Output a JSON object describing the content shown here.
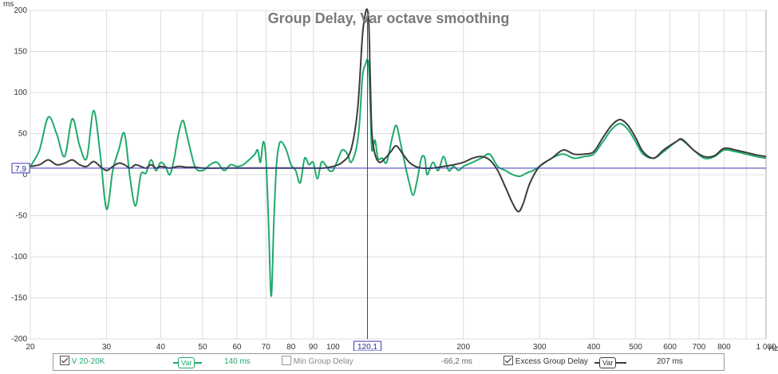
{
  "chart_data": {
    "type": "line",
    "title": "Group Delay, Var octave smoothing",
    "ylabel": "ms",
    "xunit": "Hz",
    "xscale": "log",
    "xlim": [
      20,
      1000
    ],
    "ylim": [
      -200,
      200
    ],
    "grid": true,
    "yticks": [
      "200",
      "150",
      "100",
      "50",
      "0",
      "-50",
      "-100",
      "-150",
      "-200"
    ],
    "xticks": [
      {
        "v": 20,
        "label": "20"
      },
      {
        "v": 30,
        "label": "30"
      },
      {
        "v": 40,
        "label": "40"
      },
      {
        "v": 50,
        "label": "50"
      },
      {
        "v": 60,
        "label": "60"
      },
      {
        "v": 70,
        "label": "70"
      },
      {
        "v": 80,
        "label": "80"
      },
      {
        "v": 90,
        "label": "90"
      },
      {
        "v": 100,
        "label": "100"
      },
      {
        "v": 200,
        "label": "200"
      },
      {
        "v": 300,
        "label": "300"
      },
      {
        "v": 400,
        "label": "400"
      },
      {
        "v": 500,
        "label": "500"
      },
      {
        "v": 600,
        "label": "600"
      },
      {
        "v": 700,
        "label": "700"
      },
      {
        "v": 800,
        "label": "800"
      },
      {
        "v": 1000,
        "label": "1 000"
      }
    ],
    "cursor": {
      "x": 120.1,
      "y": 7.9,
      "x_label": "120,1",
      "y_label": "7,9"
    },
    "series": [
      {
        "name": "V 20-20K",
        "color": "#1faa6a",
        "points": [
          [
            20,
            10
          ],
          [
            21,
            30
          ],
          [
            22,
            70
          ],
          [
            23,
            50
          ],
          [
            24,
            22
          ],
          [
            25,
            68
          ],
          [
            26,
            35
          ],
          [
            27,
            20
          ],
          [
            28,
            78
          ],
          [
            29,
            25
          ],
          [
            30,
            -42
          ],
          [
            31,
            5
          ],
          [
            32,
            30
          ],
          [
            33,
            50
          ],
          [
            34,
            -5
          ],
          [
            35,
            -38
          ],
          [
            36,
            0
          ],
          [
            37,
            2
          ],
          [
            38,
            18
          ],
          [
            39,
            5
          ],
          [
            40,
            15
          ],
          [
            41,
            10
          ],
          [
            42,
            0
          ],
          [
            43,
            20
          ],
          [
            44,
            50
          ],
          [
            45,
            66
          ],
          [
            46,
            48
          ],
          [
            48,
            10
          ],
          [
            50,
            5
          ],
          [
            52,
            12
          ],
          [
            54,
            15
          ],
          [
            56,
            5
          ],
          [
            58,
            12
          ],
          [
            60,
            10
          ],
          [
            62,
            12
          ],
          [
            64,
            18
          ],
          [
            66,
            25
          ],
          [
            67,
            30
          ],
          [
            68,
            15
          ],
          [
            69,
            40
          ],
          [
            70,
            20
          ],
          [
            71,
            -60
          ],
          [
            72,
            -148
          ],
          [
            73,
            -60
          ],
          [
            74,
            10
          ],
          [
            75,
            35
          ],
          [
            76,
            40
          ],
          [
            78,
            30
          ],
          [
            80,
            12
          ],
          [
            82,
            5
          ],
          [
            84,
            -10
          ],
          [
            86,
            20
          ],
          [
            88,
            12
          ],
          [
            90,
            15
          ],
          [
            92,
            -5
          ],
          [
            94,
            15
          ],
          [
            96,
            12
          ],
          [
            98,
            5
          ],
          [
            100,
            5
          ],
          [
            102,
            15
          ],
          [
            105,
            30
          ],
          [
            108,
            25
          ],
          [
            110,
            15
          ],
          [
            113,
            30
          ],
          [
            115,
            60
          ],
          [
            117,
            120
          ],
          [
            119,
            135
          ],
          [
            120.1,
            140
          ],
          [
            121,
            130
          ],
          [
            122,
            80
          ],
          [
            123,
            30
          ],
          [
            125,
            42
          ],
          [
            127,
            20
          ],
          [
            130,
            20
          ],
          [
            133,
            15
          ],
          [
            137,
            45
          ],
          [
            140,
            60
          ],
          [
            143,
            40
          ],
          [
            147,
            10
          ],
          [
            150,
            -10
          ],
          [
            153,
            -25
          ],
          [
            156,
            -10
          ],
          [
            160,
            20
          ],
          [
            163,
            20
          ],
          [
            165,
            0
          ],
          [
            170,
            15
          ],
          [
            175,
            5
          ],
          [
            180,
            22
          ],
          [
            185,
            5
          ],
          [
            190,
            10
          ],
          [
            195,
            5
          ],
          [
            200,
            10
          ],
          [
            210,
            15
          ],
          [
            220,
            20
          ],
          [
            230,
            25
          ],
          [
            240,
            10
          ],
          [
            250,
            5
          ],
          [
            260,
            0
          ],
          [
            270,
            -2
          ],
          [
            280,
            2
          ],
          [
            290,
            5
          ],
          [
            300,
            10
          ],
          [
            320,
            20
          ],
          [
            340,
            25
          ],
          [
            360,
            20
          ],
          [
            380,
            22
          ],
          [
            400,
            25
          ],
          [
            420,
            40
          ],
          [
            440,
            55
          ],
          [
            460,
            62
          ],
          [
            480,
            55
          ],
          [
            500,
            40
          ],
          [
            520,
            25
          ],
          [
            550,
            20
          ],
          [
            580,
            28
          ],
          [
            620,
            40
          ],
          [
            640,
            42
          ],
          [
            680,
            30
          ],
          [
            720,
            20
          ],
          [
            760,
            22
          ],
          [
            800,
            30
          ],
          [
            850,
            28
          ],
          [
            900,
            25
          ],
          [
            950,
            22
          ],
          [
            1000,
            20
          ]
        ]
      },
      {
        "name": "Excess Group Delay",
        "color": "#3d3d3d",
        "points": [
          [
            20,
            10
          ],
          [
            21,
            12
          ],
          [
            22,
            18
          ],
          [
            23,
            12
          ],
          [
            24,
            14
          ],
          [
            25,
            18
          ],
          [
            26,
            12
          ],
          [
            27,
            10
          ],
          [
            28,
            16
          ],
          [
            29,
            10
          ],
          [
            30,
            5
          ],
          [
            31,
            10
          ],
          [
            32,
            14
          ],
          [
            33,
            12
          ],
          [
            34,
            8
          ],
          [
            35,
            12
          ],
          [
            36,
            10
          ],
          [
            37,
            8
          ],
          [
            38,
            12
          ],
          [
            39,
            8
          ],
          [
            40,
            10
          ],
          [
            42,
            8
          ],
          [
            44,
            10
          ],
          [
            46,
            9
          ],
          [
            48,
            9
          ],
          [
            50,
            8
          ],
          [
            55,
            8
          ],
          [
            60,
            8
          ],
          [
            65,
            8
          ],
          [
            70,
            8
          ],
          [
            75,
            8
          ],
          [
            80,
            8
          ],
          [
            85,
            8
          ],
          [
            90,
            8
          ],
          [
            95,
            8
          ],
          [
            100,
            10
          ],
          [
            105,
            15
          ],
          [
            110,
            30
          ],
          [
            114,
            80
          ],
          [
            117,
            170
          ],
          [
            119,
            198
          ],
          [
            120.1,
            200
          ],
          [
            121,
            185
          ],
          [
            122,
            110
          ],
          [
            123,
            50
          ],
          [
            125,
            25
          ],
          [
            128,
            15
          ],
          [
            132,
            20
          ],
          [
            136,
            28
          ],
          [
            140,
            35
          ],
          [
            145,
            25
          ],
          [
            150,
            15
          ],
          [
            155,
            10
          ],
          [
            160,
            8
          ],
          [
            170,
            8
          ],
          [
            180,
            10
          ],
          [
            190,
            12
          ],
          [
            200,
            15
          ],
          [
            210,
            20
          ],
          [
            220,
            22
          ],
          [
            230,
            18
          ],
          [
            240,
            5
          ],
          [
            250,
            -15
          ],
          [
            260,
            -35
          ],
          [
            268,
            -45
          ],
          [
            275,
            -35
          ],
          [
            285,
            -10
          ],
          [
            300,
            10
          ],
          [
            320,
            20
          ],
          [
            340,
            30
          ],
          [
            360,
            25
          ],
          [
            380,
            25
          ],
          [
            400,
            28
          ],
          [
            420,
            45
          ],
          [
            440,
            60
          ],
          [
            460,
            67
          ],
          [
            480,
            60
          ],
          [
            500,
            45
          ],
          [
            520,
            28
          ],
          [
            550,
            20
          ],
          [
            580,
            30
          ],
          [
            620,
            40
          ],
          [
            640,
            43
          ],
          [
            680,
            30
          ],
          [
            720,
            22
          ],
          [
            760,
            23
          ],
          [
            800,
            32
          ],
          [
            850,
            30
          ],
          [
            900,
            27
          ],
          [
            950,
            24
          ],
          [
            1000,
            22
          ]
        ]
      }
    ]
  },
  "legend": {
    "s1_label": "V 20-20K",
    "s1_var": "Var",
    "s1_value": "140 ms",
    "s2_label": "Min Group Delay",
    "s2_value": "-66,2 ms",
    "s3_label": "Excess Group Delay",
    "s3_var": "Var",
    "s3_value": "207 ms",
    "s1_checked": true,
    "s2_checked": false,
    "s3_checked": true
  }
}
